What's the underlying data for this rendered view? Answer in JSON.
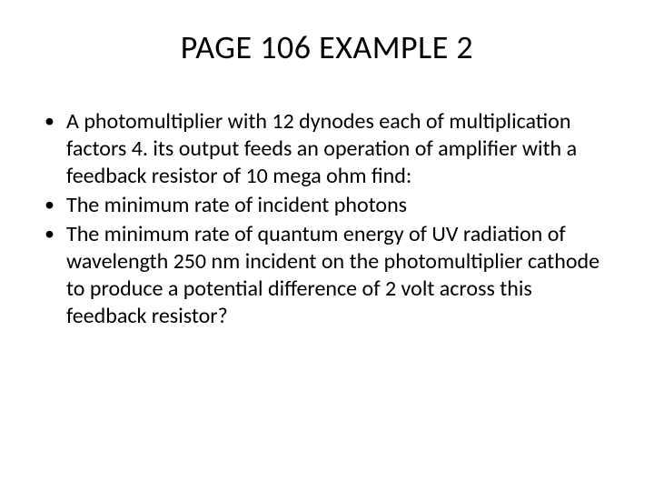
{
  "slide": {
    "title": "PAGE 106 EXAMPLE 2",
    "bullets": [
      "A photomultiplier with 12 dynodes each of multiplication factors 4. its output feeds an operation of amplifier with a feedback resistor of 10 mega ohm find:",
      "The minimum rate of incident photons",
      "The minimum rate of quantum energy of UV radiation of wavelength 250 nm incident on the photomultiplier cathode to produce a potential difference of 2 volt across this feedback resistor?"
    ]
  },
  "style": {
    "background_color": "#ffffff",
    "text_color": "#000000",
    "title_fontsize": 36,
    "body_fontsize": 24,
    "font_family": "Calibri"
  }
}
